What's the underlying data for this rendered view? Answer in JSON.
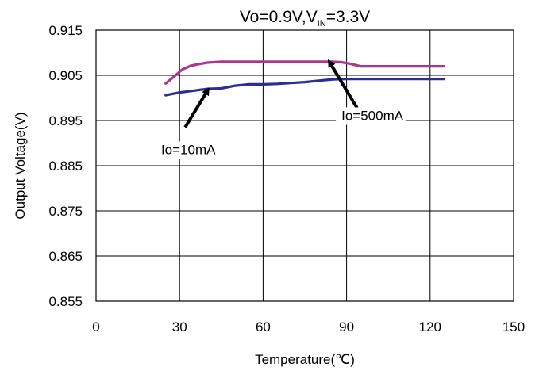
{
  "chart_data": {
    "type": "line",
    "title": {
      "main": "Vo=0.9V,V",
      "sub": "IN",
      "tail": "=3.3V"
    },
    "xlabel": "Temperature(℃)",
    "ylabel": "Output Voltage(V)",
    "xlim": [
      0,
      150
    ],
    "ylim": [
      0.855,
      0.915
    ],
    "xticks": [
      "0",
      "30",
      "60",
      "90",
      "120",
      "150"
    ],
    "yticks": [
      "0.915",
      "0.905",
      "0.895",
      "0.885",
      "0.875",
      "0.865",
      "0.855"
    ],
    "xtick_values": [
      0,
      30,
      60,
      90,
      120,
      150
    ],
    "ytick_values": [
      0.915,
      0.905,
      0.895,
      0.885,
      0.875,
      0.865,
      0.855
    ],
    "grid": true,
    "series": [
      {
        "name": "Io=10mA",
        "color": "#2b2f8f",
        "x": [
          25,
          30,
          35,
          40,
          45,
          50,
          55,
          60,
          65,
          70,
          75,
          80,
          85,
          90,
          95,
          100,
          105,
          110,
          115,
          120,
          125
        ],
        "y": [
          0.9006,
          0.9012,
          0.9016,
          0.902,
          0.9021,
          0.9027,
          0.903,
          0.903,
          0.9031,
          0.9033,
          0.9035,
          0.9038,
          0.9041,
          0.9042,
          0.9042,
          0.9042,
          0.9042,
          0.9042,
          0.9042,
          0.9042,
          0.9042
        ]
      },
      {
        "name": "Io=500mA",
        "color": "#b0358d",
        "x": [
          25,
          28,
          31,
          34,
          37,
          40,
          45,
          50,
          55,
          60,
          65,
          70,
          75,
          80,
          85,
          88,
          91,
          95,
          100,
          105,
          110,
          115,
          120,
          125
        ],
        "y": [
          0.9032,
          0.9047,
          0.9063,
          0.9071,
          0.9075,
          0.9078,
          0.908,
          0.908,
          0.908,
          0.908,
          0.908,
          0.908,
          0.908,
          0.908,
          0.908,
          0.9079,
          0.9076,
          0.907,
          0.907,
          0.907,
          0.907,
          0.907,
          0.907,
          0.907
        ]
      }
    ],
    "annotations": [
      {
        "text": "Io=10mA",
        "tail_x": 32,
        "tail_y": 0.8935,
        "head_x": 40,
        "head_y": 0.9016
      },
      {
        "text": "Io=500mA",
        "tail_x": 95,
        "tail_y": 0.8965,
        "head_x": 84,
        "head_y": 0.9078
      }
    ]
  }
}
